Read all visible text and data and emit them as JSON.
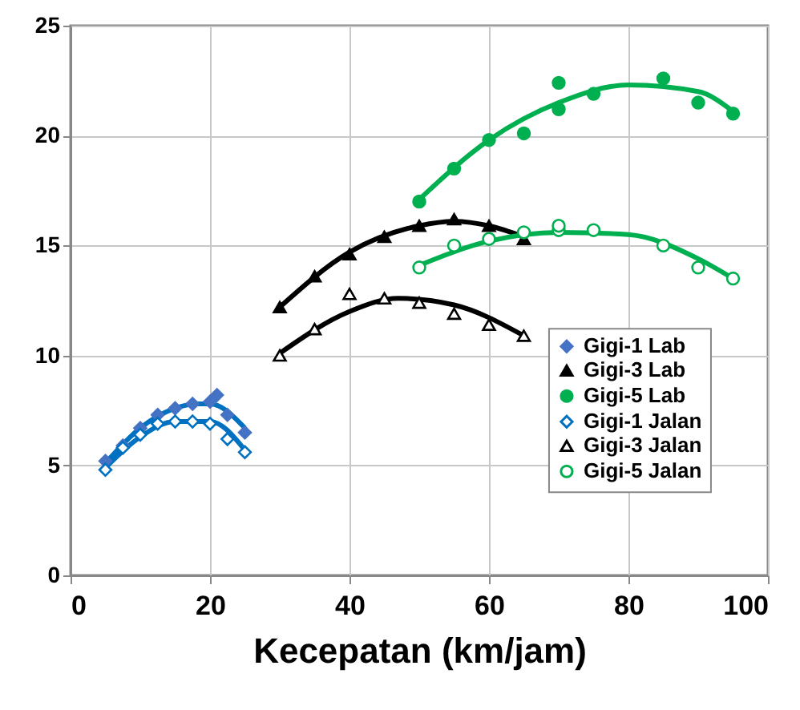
{
  "chart_data": {
    "type": "scatter",
    "xlabel": "Kecepatan (km/jam)",
    "xlim": [
      0,
      100
    ],
    "xticks": [
      0,
      20,
      40,
      60,
      80,
      100
    ],
    "ylim": [
      0,
      25
    ],
    "yticks": [
      0,
      5,
      10,
      15,
      20,
      25
    ],
    "grid": true,
    "legend": "bottom right",
    "series": [
      {
        "name": "Gigi-1 Lab",
        "color": "#4472c4",
        "marker": "diamond",
        "x": [
          5,
          7.5,
          10,
          12.5,
          15,
          17.5,
          20,
          21,
          22.5,
          25
        ],
        "values": [
          5.2,
          5.9,
          6.7,
          7.3,
          7.6,
          7.8,
          7.9,
          8.2,
          7.3,
          6.5
        ]
      },
      {
        "name": "Gigi-3 Lab",
        "color": "#000000",
        "marker": "triangle",
        "x": [
          30,
          35,
          40,
          45,
          50,
          55,
          60,
          65
        ],
        "values": [
          12.2,
          13.6,
          14.6,
          15.4,
          15.9,
          16.2,
          15.9,
          15.3
        ]
      },
      {
        "name": "Gigi-5 Lab",
        "color": "#00b050",
        "marker": "circle",
        "x": [
          50,
          55,
          60,
          65,
          70,
          70,
          75,
          85,
          90,
          95
        ],
        "values": [
          17.0,
          18.5,
          19.8,
          20.1,
          21.2,
          22.4,
          21.9,
          22.6,
          21.5,
          21.0
        ]
      },
      {
        "name": "Gigi-1 Jalan",
        "color": "#0070c0",
        "colors": [
          "#ffffff",
          "#ffffff",
          "#ffffff",
          "#ffffff",
          "#ffffff",
          "#ffffff",
          "#ffffff",
          "#ffffff",
          "#ffffff"
        ],
        "marker": "diamond",
        "x": [
          5,
          7.5,
          10,
          12.5,
          15,
          17.5,
          20,
          22.5,
          25
        ],
        "values": [
          4.8,
          5.8,
          6.4,
          6.9,
          7.0,
          7.0,
          6.9,
          6.2,
          5.6
        ]
      },
      {
        "name": "Gigi-3 Jalan",
        "color": "#000000",
        "colors": [
          "#ffffff",
          "#ffffff",
          "#ffffff",
          "#ffffff",
          "#ffffff",
          "#ffffff",
          "#ffffff",
          "#ffffff"
        ],
        "marker": "triangle",
        "x": [
          30,
          35,
          40,
          45,
          50,
          55,
          60,
          65
        ],
        "values": [
          10.0,
          11.2,
          12.8,
          12.6,
          12.4,
          11.9,
          11.4,
          10.9
        ]
      },
      {
        "name": "Gigi-5 Jalan",
        "color": "#00b050",
        "colors": [
          "#ffffff",
          "#ffffff",
          "#ffffff",
          "#ffffff",
          "#ffffff",
          "#ffffff",
          "#ffffff",
          "#ffffff",
          "#ffffff",
          "#ffffff"
        ],
        "marker": "circle",
        "x": [
          50,
          55,
          60,
          65,
          70,
          70,
          75,
          85,
          90,
          95
        ],
        "values": [
          14.0,
          15.0,
          15.3,
          15.6,
          15.7,
          15.9,
          15.7,
          15.0,
          14.0,
          13.5
        ]
      },
      {
        "type": "line",
        "color": "#0070c0",
        "x": [
          5,
          10,
          15,
          18,
          20,
          25
        ],
        "values": [
          5.1,
          6.7,
          7.6,
          7.8,
          7.8,
          6.7
        ]
      },
      {
        "type": "line",
        "color": "#0070c0",
        "x": [
          5,
          10,
          15,
          20,
          25
        ],
        "values": [
          4.9,
          6.3,
          7.0,
          7.0,
          5.7
        ]
      },
      {
        "type": "line",
        "color": "#000000",
        "x": [
          30,
          40,
          50,
          55,
          60,
          65
        ],
        "values": [
          12.2,
          14.7,
          15.9,
          16.1,
          15.9,
          15.4
        ]
      },
      {
        "type": "line",
        "color": "#000000",
        "x": [
          30,
          40,
          47,
          55,
          65
        ],
        "values": [
          10.1,
          12.0,
          12.6,
          12.3,
          10.9
        ]
      },
      {
        "type": "line",
        "color": "#00b050",
        "x": [
          50,
          60,
          70,
          80,
          90,
          95
        ],
        "values": [
          17.1,
          19.8,
          21.5,
          22.3,
          22.0,
          21.1
        ]
      },
      {
        "type": "line",
        "color": "#00b050",
        "x": [
          50,
          60,
          70,
          80,
          90,
          95
        ],
        "values": [
          14.1,
          15.2,
          15.6,
          15.5,
          14.4,
          13.5
        ]
      }
    ]
  }
}
